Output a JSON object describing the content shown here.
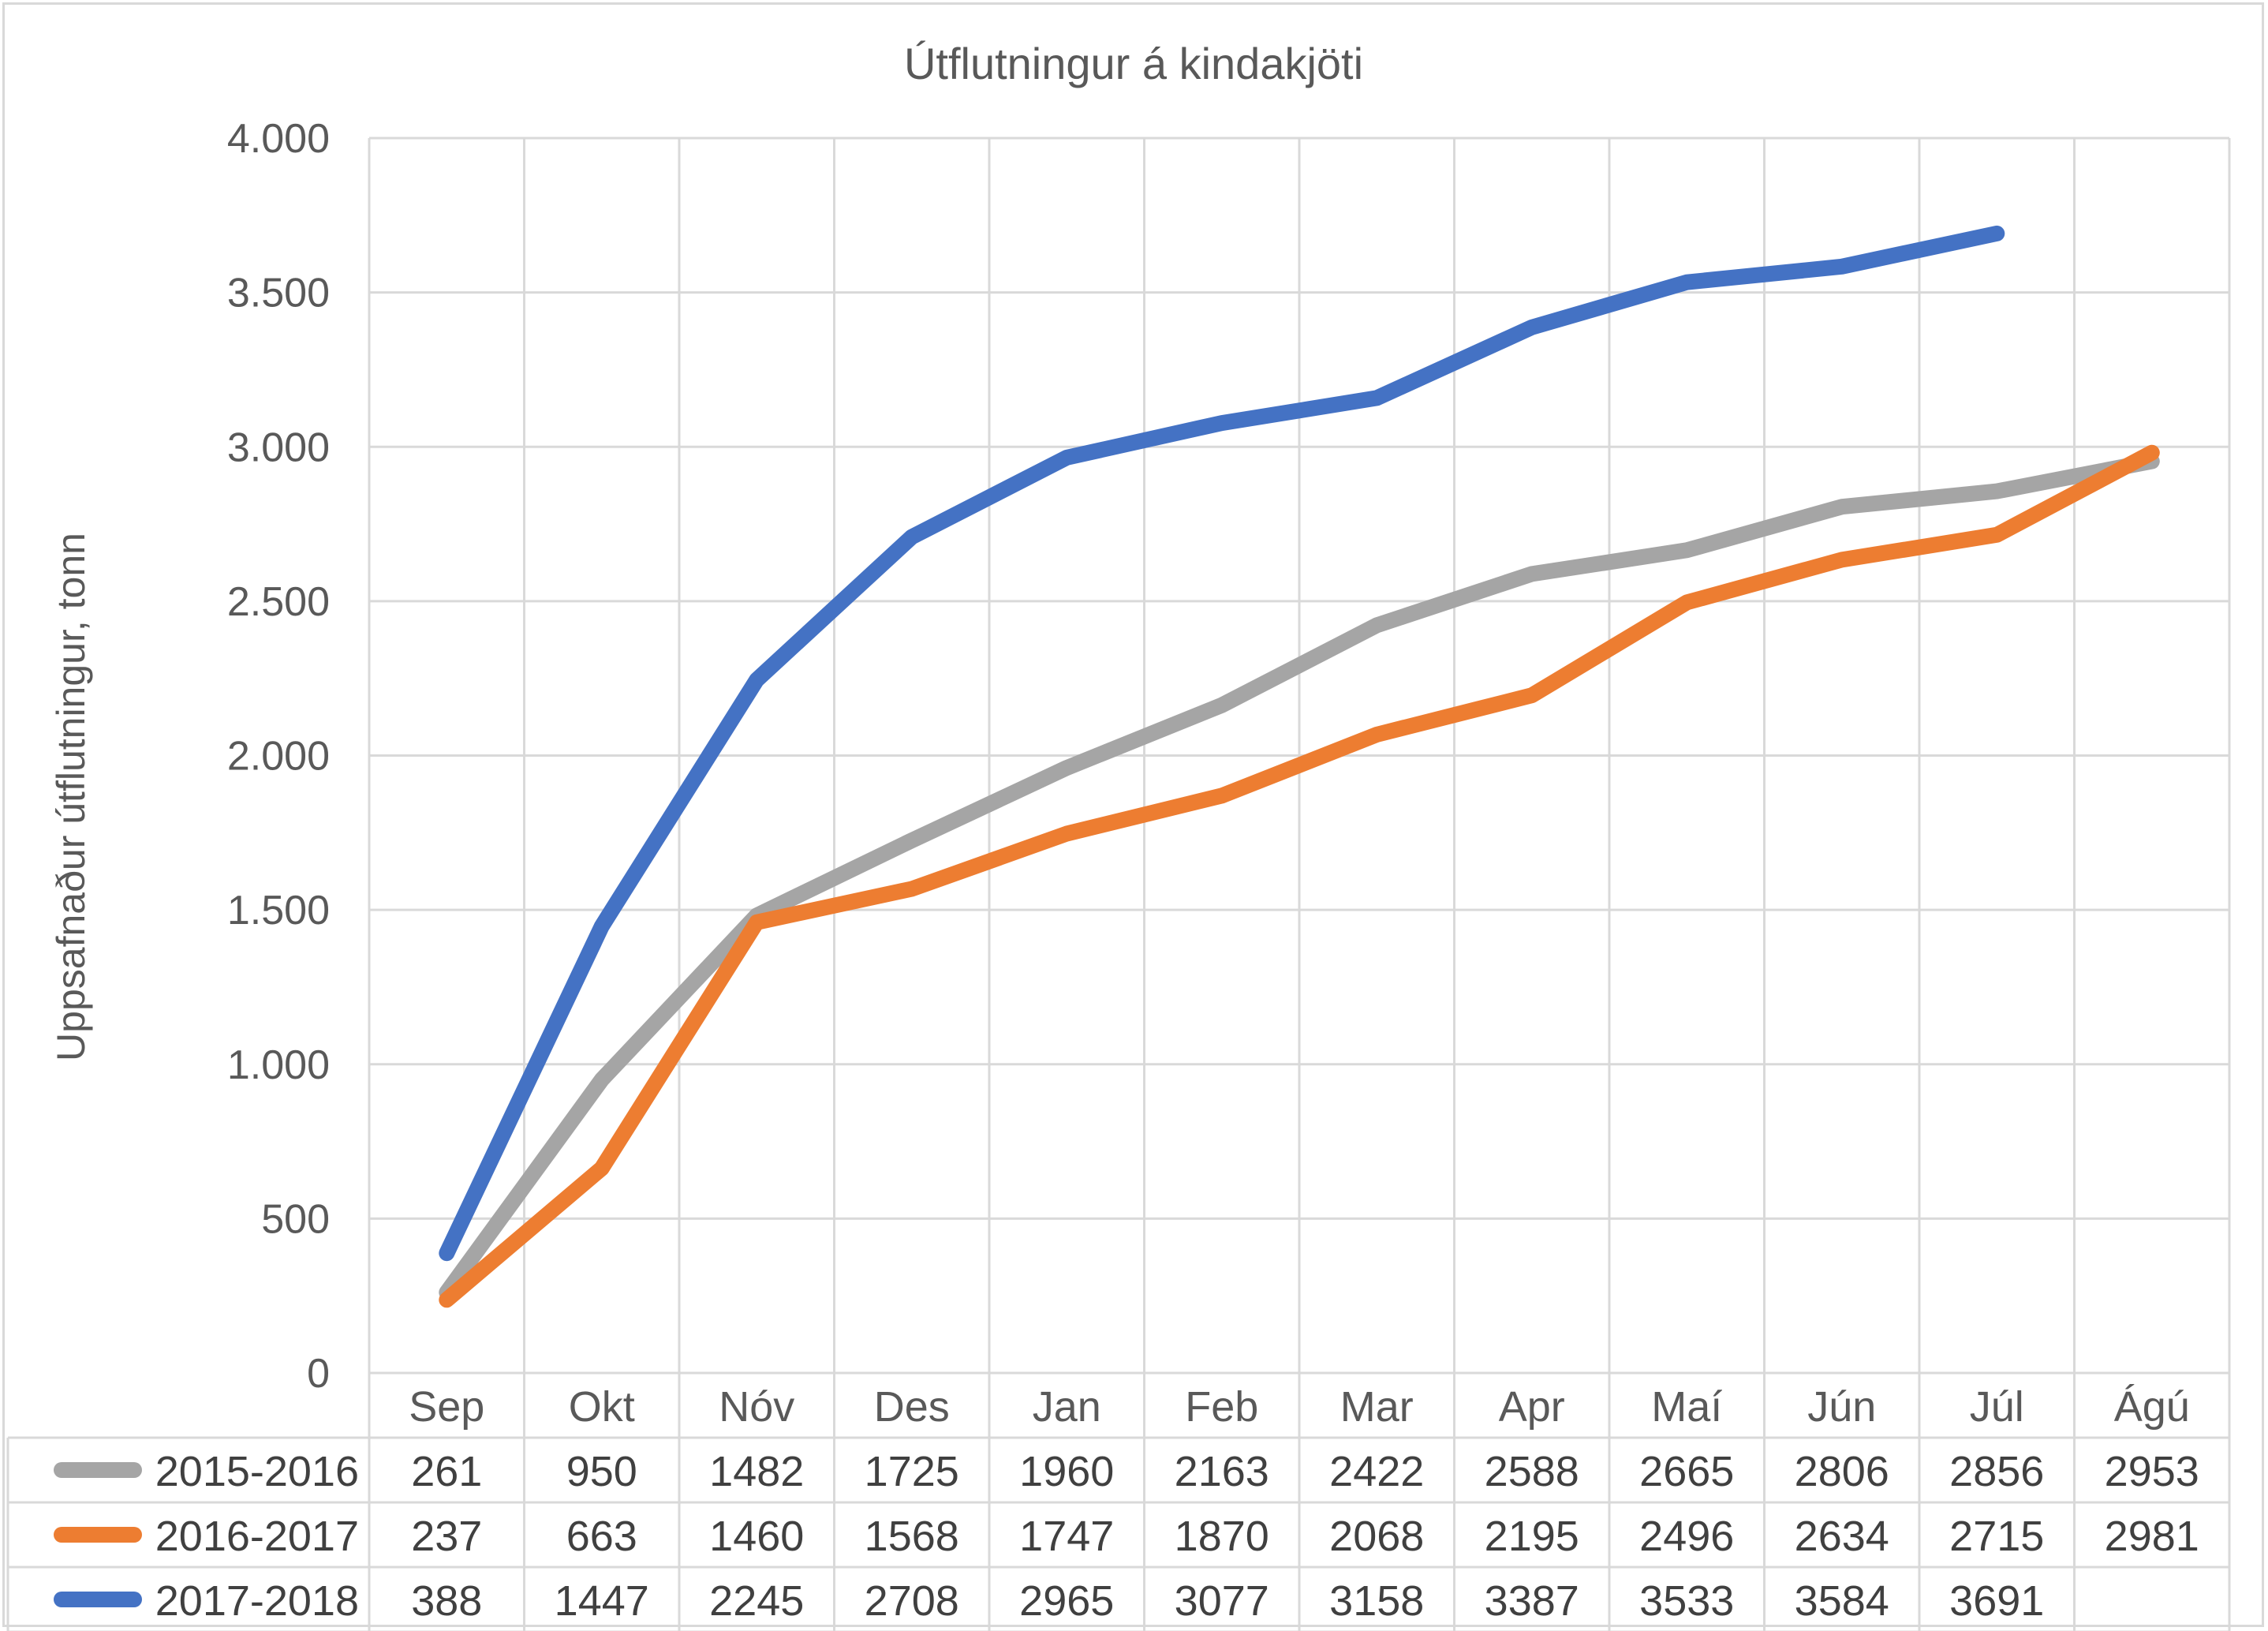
{
  "chart_data": {
    "type": "line",
    "title": "Útflutningur á kindakjöti",
    "ylabel": "Uppsafnaður útflutningur, tonn",
    "xlabel": "",
    "ylim": [
      0,
      4000
    ],
    "yticks": [
      0,
      500,
      1000,
      1500,
      2000,
      2500,
      3000,
      3500,
      4000
    ],
    "ytick_labels": [
      "0",
      "500",
      "1.000",
      "1.500",
      "2.000",
      "2.500",
      "3.000",
      "3.500",
      "4.000"
    ],
    "categories": [
      "Sep",
      "Okt",
      "Nóv",
      "Des",
      "Jan",
      "Feb",
      "Mar",
      "Apr",
      "Maí",
      "Jún",
      "Júl",
      "Ágú"
    ],
    "grid": true,
    "legend": "data table below chart",
    "series": [
      {
        "name": "2015-2016",
        "color": "#a5a5a5",
        "values": [
          261,
          950,
          1482,
          1725,
          1960,
          2163,
          2422,
          2588,
          2665,
          2806,
          2856,
          2953
        ]
      },
      {
        "name": "2016-2017",
        "color": "#ed7d31",
        "values": [
          237,
          663,
          1460,
          1568,
          1747,
          1870,
          2068,
          2195,
          2496,
          2634,
          2715,
          2981
        ]
      },
      {
        "name": "2017-2018",
        "color": "#4472c4",
        "values": [
          388,
          1447,
          2245,
          2708,
          2965,
          3077,
          3158,
          3387,
          3533,
          3584,
          3691,
          null
        ]
      }
    ]
  }
}
